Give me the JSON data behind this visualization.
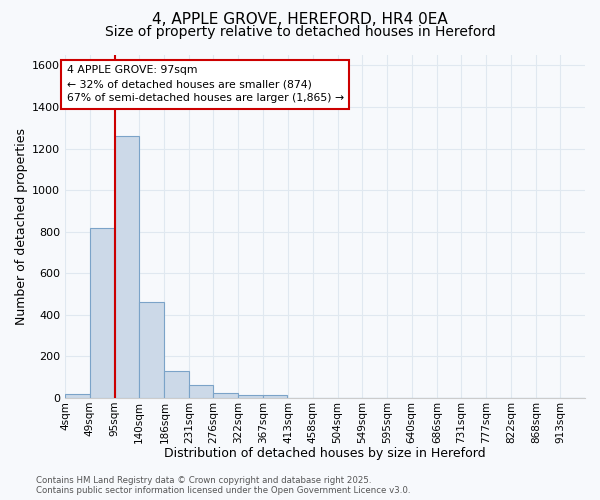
{
  "title1": "4, APPLE GROVE, HEREFORD, HR4 0EA",
  "title2": "Size of property relative to detached houses in Hereford",
  "xlabel": "Distribution of detached houses by size in Hereford",
  "ylabel": "Number of detached properties",
  "bin_labels": [
    "4sqm",
    "49sqm",
    "95sqm",
    "140sqm",
    "186sqm",
    "231sqm",
    "276sqm",
    "322sqm",
    "367sqm",
    "413sqm",
    "458sqm",
    "504sqm",
    "549sqm",
    "595sqm",
    "640sqm",
    "686sqm",
    "731sqm",
    "777sqm",
    "822sqm",
    "868sqm",
    "913sqm"
  ],
  "bin_edges": [
    4,
    49,
    95,
    140,
    186,
    231,
    276,
    322,
    367,
    413,
    458,
    504,
    549,
    595,
    640,
    686,
    731,
    777,
    822,
    868,
    913
  ],
  "bin_width": 45,
  "bar_heights": [
    20,
    820,
    1260,
    460,
    130,
    60,
    25,
    15,
    15,
    0,
    0,
    0,
    0,
    0,
    0,
    0,
    0,
    0,
    0,
    0,
    0
  ],
  "bar_color": "#ccd9e8",
  "bar_edge_color": "#7ba3c8",
  "property_line_x": 95,
  "property_line_color": "#cc0000",
  "annotation_text": "4 APPLE GROVE: 97sqm\n← 32% of detached houses are smaller (874)\n67% of semi-detached houses are larger (1,865) →",
  "annotation_box_color": "#cc0000",
  "annotation_bg": "#ffffff",
  "ylim": [
    0,
    1650
  ],
  "yticks": [
    0,
    200,
    400,
    600,
    800,
    1000,
    1200,
    1400,
    1600
  ],
  "footer_text": "Contains HM Land Registry data © Crown copyright and database right 2025.\nContains public sector information licensed under the Open Government Licence v3.0.",
  "bg_color": "#f7f9fc",
  "plot_bg_color": "#f7f9fc",
  "grid_color": "#e0e8f0",
  "title1_fontsize": 11,
  "title2_fontsize": 10
}
